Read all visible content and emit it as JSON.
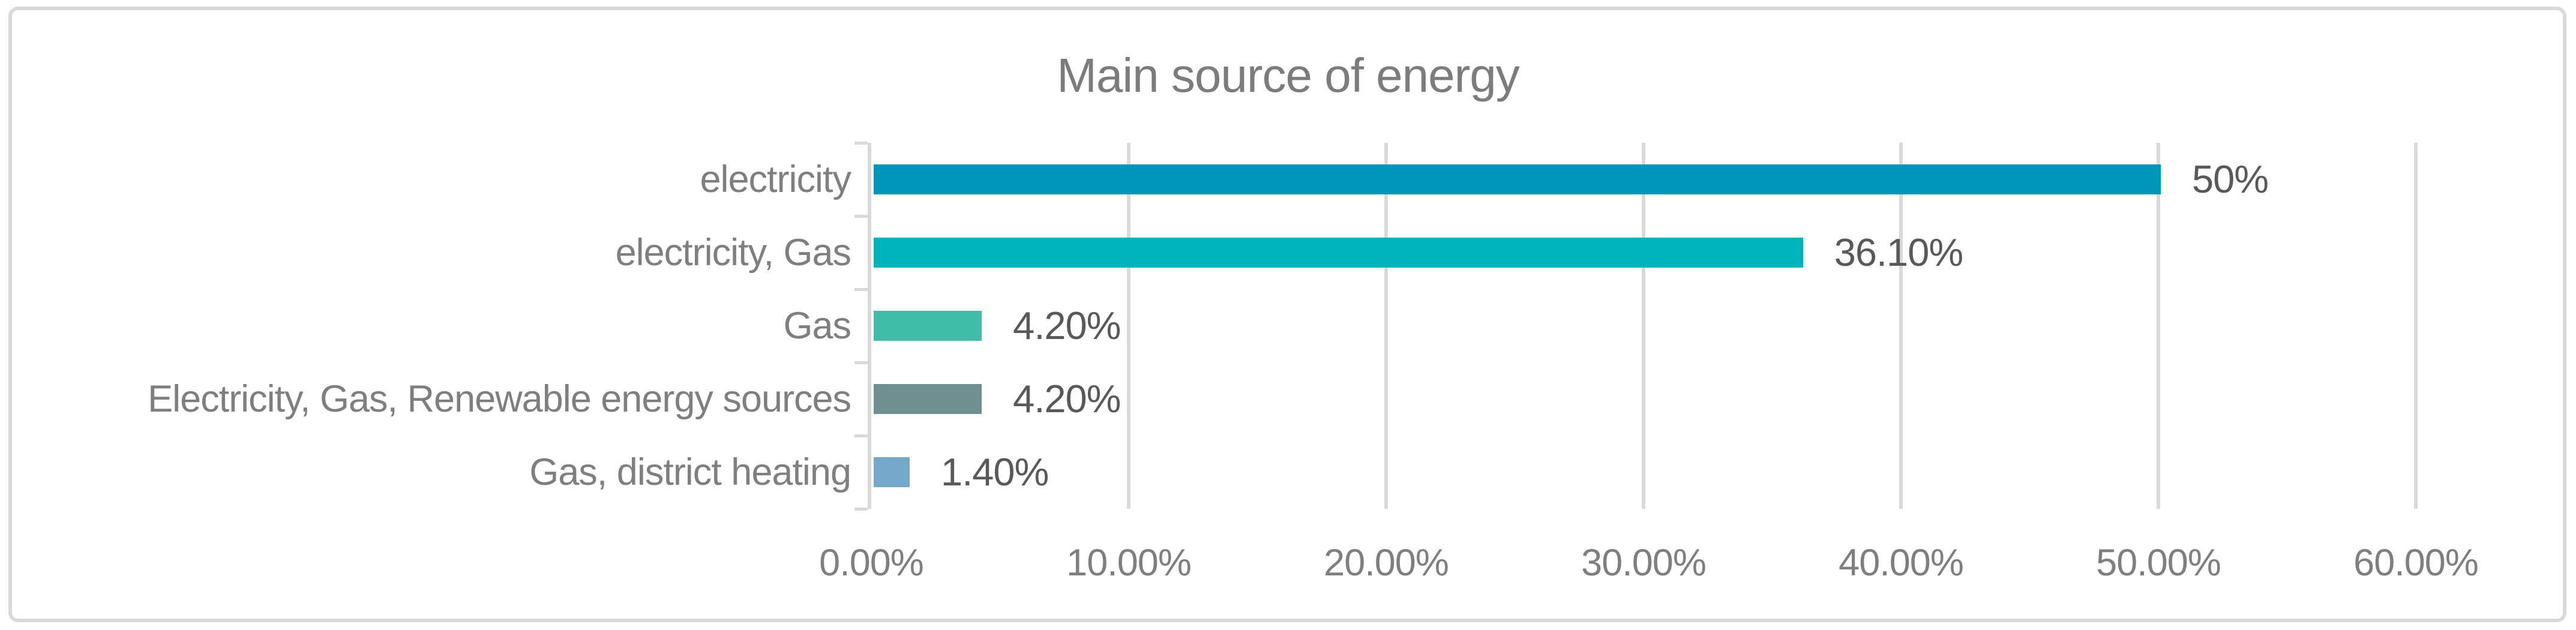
{
  "chart_data": {
    "type": "bar",
    "orientation": "horizontal",
    "title": "Main source of energy",
    "categories": [
      "electricity",
      "electricity, Gas",
      "Gas",
      "Electricity, Gas, Renewable energy sources",
      "Gas, district heating"
    ],
    "values": [
      50,
      36.1,
      4.2,
      4.2,
      1.4
    ],
    "data_labels": [
      "50%",
      "36.10%",
      "4.20%",
      "4.20%",
      "1.40%"
    ],
    "bar_colors": [
      "#0096BA",
      "#00B4BE",
      "#3EBDA8",
      "#708F90",
      "#74A7C8"
    ],
    "xlabel": "",
    "ylabel": "",
    "xlim": [
      0,
      60
    ],
    "x_ticks": [
      "0.00%",
      "10.00%",
      "20.00%",
      "30.00%",
      "40.00%",
      "50.00%",
      "60.00%"
    ],
    "x_tick_values": [
      0,
      10,
      20,
      30,
      40,
      50,
      60
    ],
    "grid": true,
    "legend": false,
    "colors": {
      "title": "#7C7C7C",
      "axis_labels": "#7F7F7F",
      "data_labels": "#595959",
      "gridline": "#D9D9D9",
      "border": "#D9D9D9",
      "background": "#FFFFFF"
    }
  }
}
